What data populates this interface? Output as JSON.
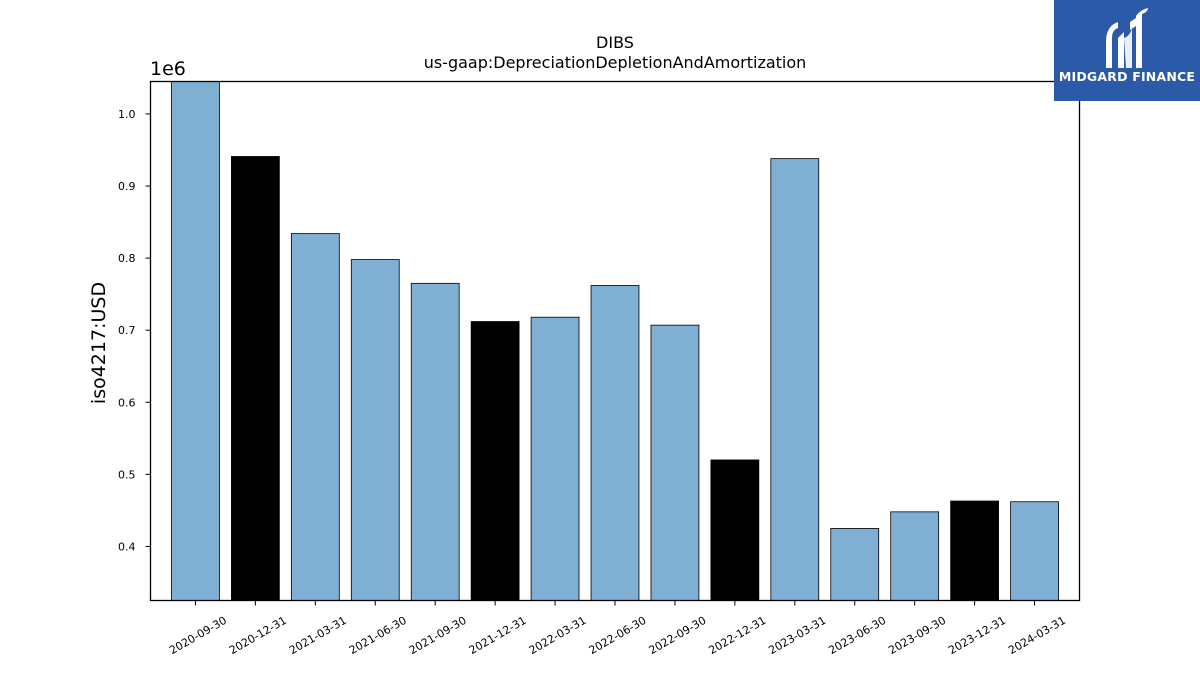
{
  "chart_data": {
    "type": "bar",
    "title": "DIBS",
    "subtitle": "us-gaap:DepreciationDepletionAndAmortization",
    "ylabel": "iso4217:USD",
    "xlabel": "",
    "offset_label": "1e6",
    "scale": 1000000,
    "ylim": [
      0.325,
      1.045
    ],
    "yticks": [
      0.4,
      0.5,
      0.6,
      0.7,
      0.8,
      0.9,
      1.0
    ],
    "ytick_labels": [
      "0.4",
      "0.5",
      "0.6",
      "0.7",
      "0.8",
      "0.9",
      "1.0"
    ],
    "grid": false,
    "categories": [
      "2020-09-30",
      "2020-12-31",
      "2021-03-31",
      "2021-06-30",
      "2021-09-30",
      "2021-12-31",
      "2022-03-31",
      "2022-06-30",
      "2022-09-30",
      "2022-12-31",
      "2023-03-31",
      "2023-06-30",
      "2023-09-30",
      "2023-12-31",
      "2024-03-31"
    ],
    "values": [
      1045000,
      941000,
      834000,
      798000,
      765000,
      712000,
      718000,
      762000,
      707000,
      520000,
      938000,
      425000,
      448000,
      463000,
      462000
    ],
    "bar_colors": [
      "#7fafd3",
      "#000000",
      "#7fafd3",
      "#7fafd3",
      "#7fafd3",
      "#000000",
      "#7fafd3",
      "#7fafd3",
      "#7fafd3",
      "#000000",
      "#7fafd3",
      "#7fafd3",
      "#7fafd3",
      "#000000",
      "#7fafd3"
    ]
  },
  "logo": {
    "text": "MIDGARD FINANCE",
    "background": "#2b5aa8",
    "icon": "midgard-logo-icon"
  }
}
